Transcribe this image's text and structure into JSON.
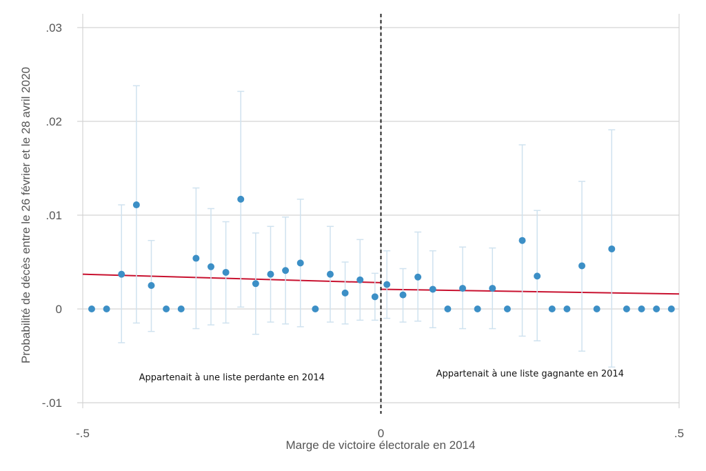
{
  "chart_data": {
    "type": "scatter",
    "xlabel": "Marge de victoire électorale en 2014",
    "ylabel": "Probabilité de décès entre le 26 février et le 28 avril 2020",
    "xlim": [
      -0.5,
      0.5
    ],
    "ylim": [
      -0.01,
      0.03
    ],
    "x_ticks": [
      {
        "value": -0.5,
        "label": "-.5"
      },
      {
        "value": 0,
        "label": "0"
      },
      {
        "value": 0.5,
        "label": ".5"
      }
    ],
    "y_ticks": [
      {
        "value": -0.01,
        "label": "-.01"
      },
      {
        "value": 0,
        "label": "0"
      },
      {
        "value": 0.01,
        "label": ".01"
      },
      {
        "value": 0.02,
        "label": ".02"
      },
      {
        "value": 0.03,
        "label": ".03"
      }
    ],
    "grid": true,
    "cutoff": 0,
    "colors": {
      "points": "#3c8fc6",
      "error_bars": "#cfe2ef",
      "fit_line": "#c8102e",
      "cutoff_line": "#222222",
      "grid": "#d4d4d4"
    },
    "points": [
      {
        "x": -0.485,
        "y": 0.0,
        "ci": null
      },
      {
        "x": -0.46,
        "y": 0.0,
        "ci": null
      },
      {
        "x": -0.435,
        "y": 0.0037,
        "ci": [
          -0.0036,
          0.0111
        ]
      },
      {
        "x": -0.41,
        "y": 0.0111,
        "ci": [
          -0.0015,
          0.0238
        ]
      },
      {
        "x": -0.385,
        "y": 0.0025,
        "ci": [
          -0.0024,
          0.0073
        ]
      },
      {
        "x": -0.36,
        "y": 0.0,
        "ci": null
      },
      {
        "x": -0.335,
        "y": 0.0,
        "ci": null
      },
      {
        "x": -0.31,
        "y": 0.0054,
        "ci": [
          -0.0021,
          0.0129
        ]
      },
      {
        "x": -0.285,
        "y": 0.0045,
        "ci": [
          -0.0017,
          0.0107
        ]
      },
      {
        "x": -0.26,
        "y": 0.0039,
        "ci": [
          -0.0015,
          0.0093
        ]
      },
      {
        "x": -0.235,
        "y": 0.0117,
        "ci": [
          0.0002,
          0.0232
        ]
      },
      {
        "x": -0.21,
        "y": 0.0027,
        "ci": [
          -0.0027,
          0.0081
        ]
      },
      {
        "x": -0.185,
        "y": 0.0037,
        "ci": [
          -0.0014,
          0.0088
        ]
      },
      {
        "x": -0.16,
        "y": 0.0041,
        "ci": [
          -0.0016,
          0.0098
        ]
      },
      {
        "x": -0.135,
        "y": 0.0049,
        "ci": [
          -0.0019,
          0.0117
        ]
      },
      {
        "x": -0.11,
        "y": 0.0,
        "ci": null
      },
      {
        "x": -0.085,
        "y": 0.0037,
        "ci": [
          -0.0014,
          0.0088
        ]
      },
      {
        "x": -0.06,
        "y": 0.0017,
        "ci": [
          -0.0016,
          0.005
        ]
      },
      {
        "x": -0.035,
        "y": 0.0031,
        "ci": [
          -0.0012,
          0.0074
        ]
      },
      {
        "x": -0.01,
        "y": 0.0013,
        "ci": [
          -0.0012,
          0.0038
        ]
      },
      {
        "x": 0.01,
        "y": 0.0026,
        "ci": [
          -0.001,
          0.0062
        ]
      },
      {
        "x": 0.037,
        "y": 0.0015,
        "ci": [
          -0.0014,
          0.0043
        ]
      },
      {
        "x": 0.062,
        "y": 0.0034,
        "ci": [
          -0.0013,
          0.0082
        ]
      },
      {
        "x": 0.087,
        "y": 0.0021,
        "ci": [
          -0.002,
          0.0062
        ]
      },
      {
        "x": 0.112,
        "y": 0.0,
        "ci": null
      },
      {
        "x": 0.137,
        "y": 0.0022,
        "ci": [
          -0.0021,
          0.0066
        ]
      },
      {
        "x": 0.162,
        "y": 0.0,
        "ci": null
      },
      {
        "x": 0.187,
        "y": 0.0022,
        "ci": [
          -0.0021,
          0.0065
        ]
      },
      {
        "x": 0.212,
        "y": 0.0,
        "ci": null
      },
      {
        "x": 0.237,
        "y": 0.0073,
        "ci": [
          -0.0029,
          0.0175
        ]
      },
      {
        "x": 0.262,
        "y": 0.0035,
        "ci": [
          -0.0034,
          0.0105
        ]
      },
      {
        "x": 0.287,
        "y": 0.0,
        "ci": null
      },
      {
        "x": 0.312,
        "y": 0.0,
        "ci": null
      },
      {
        "x": 0.337,
        "y": 0.0046,
        "ci": [
          -0.0045,
          0.0136
        ]
      },
      {
        "x": 0.362,
        "y": 0.0,
        "ci": null
      },
      {
        "x": 0.387,
        "y": 0.0064,
        "ci": [
          -0.0062,
          0.0191
        ]
      },
      {
        "x": 0.412,
        "y": 0.0,
        "ci": null
      },
      {
        "x": 0.437,
        "y": 0.0,
        "ci": null
      },
      {
        "x": 0.462,
        "y": 0.0,
        "ci": null
      },
      {
        "x": 0.487,
        "y": 0.0,
        "ci": null
      }
    ],
    "fit_lines": [
      {
        "x": [
          -0.5,
          0.0
        ],
        "y": [
          0.0037,
          0.0028
        ]
      },
      {
        "x": [
          0.0,
          0.5
        ],
        "y": [
          0.0021,
          0.0016
        ]
      }
    ],
    "annotations": [
      {
        "text": "Appartenait à une liste perdante en 2014",
        "x": -0.25,
        "y": -0.0076
      },
      {
        "text": "Appartenait à une liste gagnante en 2014",
        "x": 0.25,
        "y": -0.0072
      }
    ]
  }
}
